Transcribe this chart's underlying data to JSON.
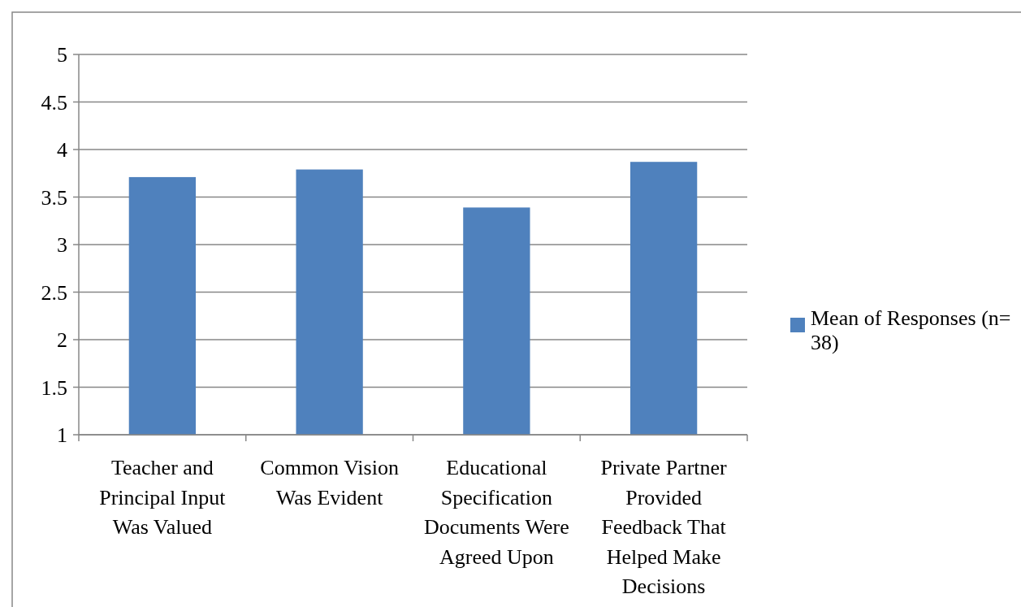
{
  "chart_data": {
    "type": "bar",
    "categories": [
      "Teacher and Principal Input Was Valued",
      "Common Vision Was Evident",
      "Educational Specification Documents Were Agreed Upon",
      "Private Partner Provided Feedback That Helped Make Decisions"
    ],
    "series": [
      {
        "name": "Mean of Responses (n= 38)",
        "color": "#4f81bd",
        "values": [
          3.71,
          3.79,
          3.39,
          3.87
        ]
      }
    ],
    "ylim": [
      1,
      5
    ],
    "yticks": [
      1,
      1.5,
      2,
      2.5,
      3,
      3.5,
      4,
      4.5,
      5
    ],
    "grid": "y",
    "legend": "right"
  }
}
